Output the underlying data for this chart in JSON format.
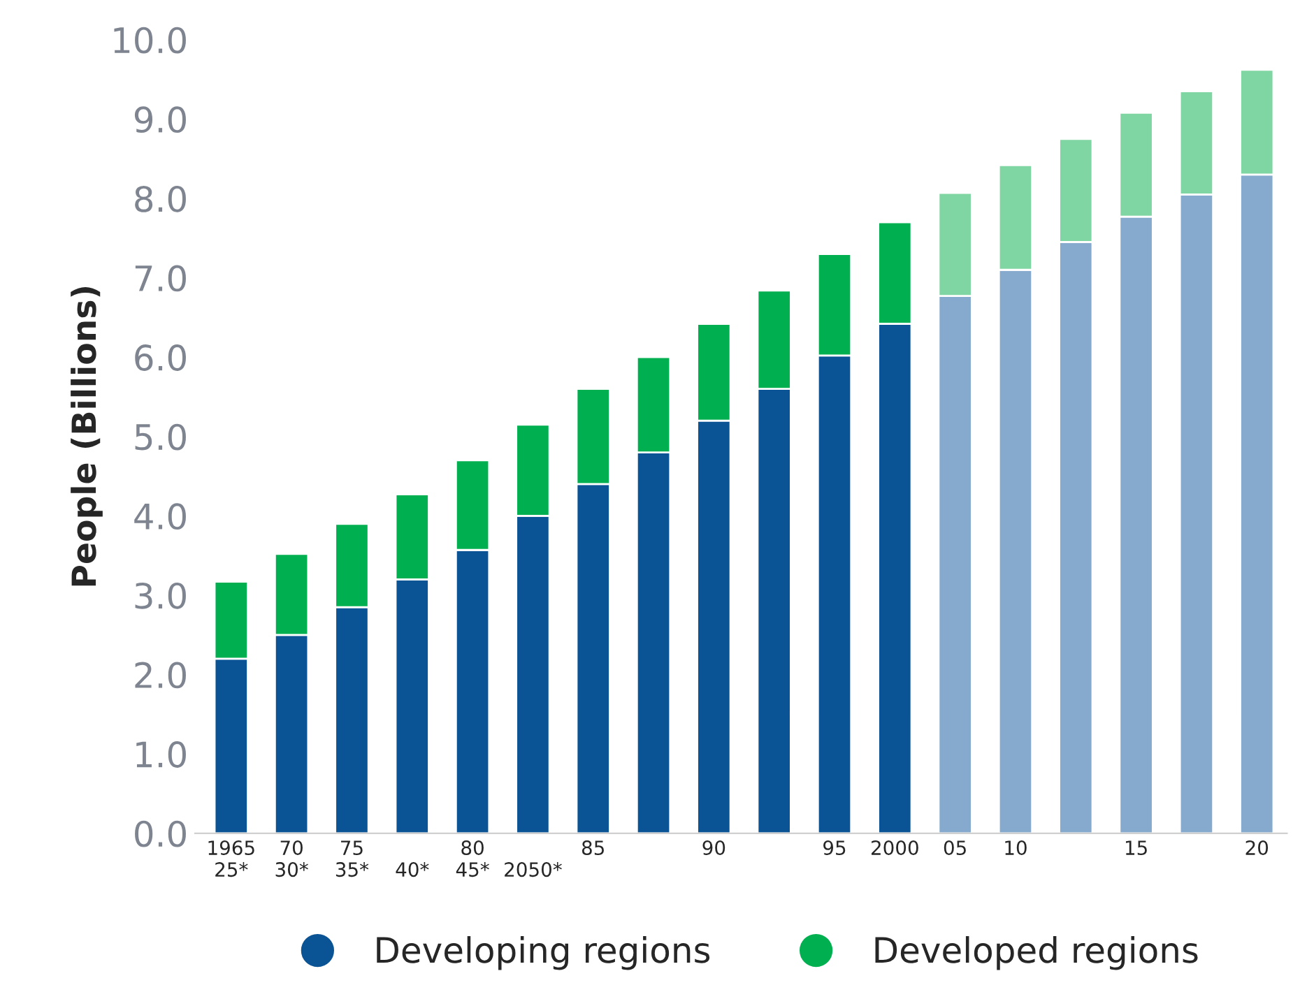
{
  "chart_data": {
    "type": "bar",
    "stacked": true,
    "ylabel": "People (Billions)",
    "categories": [
      "1965\n25*",
      "70\n30*",
      "75\n35*",
      "\n40*",
      "80\n45*",
      "\n2050*",
      "85",
      null,
      "90",
      null,
      "95",
      "2000",
      "05",
      "10",
      null,
      "15",
      null,
      "20"
    ],
    "series": [
      {
        "name": "Developing regions",
        "color": "#0a5394",
        "colors": [
          "#0a5394",
          "#0a5394",
          "#0a5394",
          "#0a5394",
          "#0a5394",
          "#0a5394",
          "#0a5394",
          "#0a5394",
          "#0a5394",
          "#0a5394",
          "#0a5394",
          "#0a5394",
          "#85aacd",
          "#85aacd",
          "#85aacd",
          "#85aacd",
          "#85aacd",
          "#85aacd"
        ],
        "values": [
          2.2,
          2.5,
          2.85,
          3.2,
          3.57,
          4.0,
          4.4,
          4.8,
          5.2,
          5.6,
          6.02,
          6.42,
          6.77,
          7.1,
          7.45,
          7.77,
          8.05,
          8.3
        ]
      },
      {
        "name": "Developed regions",
        "color": "#00b050",
        "colors": [
          "#00b050",
          "#00b050",
          "#00b050",
          "#00b050",
          "#00b050",
          "#00b050",
          "#00b050",
          "#00b050",
          "#00b050",
          "#00b050",
          "#00b050",
          "#00b050",
          "#80d6a2",
          "#80d6a2",
          "#80d6a2",
          "#80d6a2",
          "#80d6a2",
          "#80d6a2"
        ],
        "values": [
          0.97,
          1.02,
          1.05,
          1.07,
          1.13,
          1.15,
          1.2,
          1.2,
          1.22,
          1.24,
          1.28,
          1.28,
          1.3,
          1.32,
          1.3,
          1.31,
          1.3,
          1.32
        ]
      }
    ],
    "ylim": [
      0,
      10
    ],
    "yticks": [
      {
        "value": 0,
        "label": "0.0"
      },
      {
        "value": 1,
        "label": "1.0"
      },
      {
        "value": 2,
        "label": "2.0"
      },
      {
        "value": 3,
        "label": "3.0"
      },
      {
        "value": 4,
        "label": "4.0"
      },
      {
        "value": 5,
        "label": "5.0"
      },
      {
        "value": 6,
        "label": "6.0"
      },
      {
        "value": 7,
        "label": "7.0"
      },
      {
        "value": 8,
        "label": "8.0"
      },
      {
        "value": 9,
        "label": "9.0"
      },
      {
        "value": 10,
        "label": "10.0"
      }
    ],
    "grid": false,
    "legend": "bottom",
    "marker": "circle"
  }
}
